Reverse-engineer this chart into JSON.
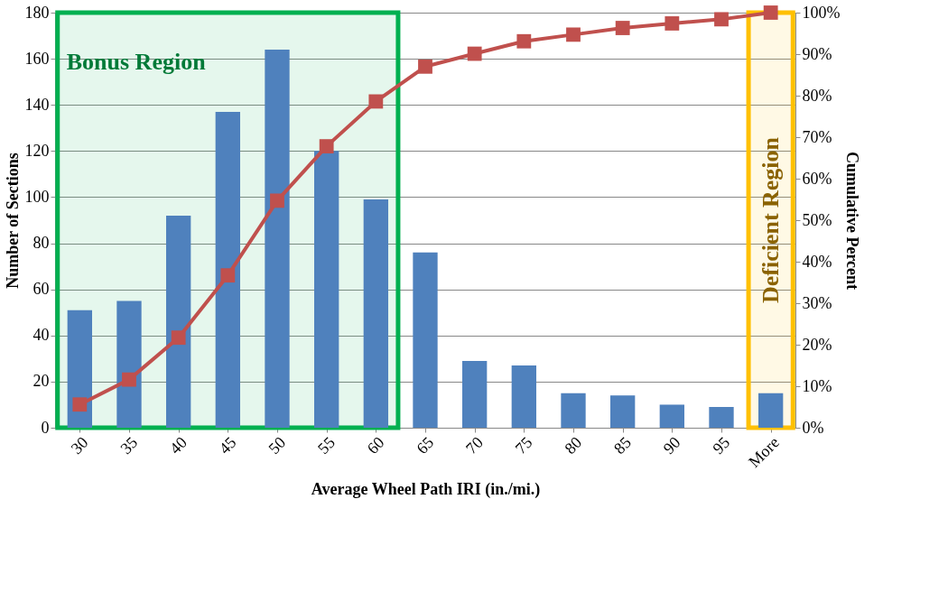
{
  "chart_data": {
    "type": "bar",
    "xlabel": "Average Wheel Path IRI (in./mi.)",
    "ylabel": "Number of Sections",
    "y2label": "Cumulative Percent",
    "categories": [
      "30",
      "35",
      "40",
      "45",
      "50",
      "55",
      "60",
      "65",
      "70",
      "75",
      "80",
      "85",
      "90",
      "95",
      "More"
    ],
    "series": [
      {
        "color": "#4f81bd",
        "values": [
          51,
          55,
          92,
          137,
          164,
          120,
          99,
          76,
          29,
          27,
          15,
          14,
          10,
          9,
          15
        ]
      },
      {
        "type": "line",
        "axis": "y2",
        "color": "#c0504d",
        "marker": "square",
        "values": [
          5.6,
          11.6,
          21.7,
          36.7,
          54.7,
          67.8,
          78.6,
          87.0,
          90.1,
          93.1,
          94.7,
          96.3,
          97.4,
          98.4,
          100
        ]
      }
    ],
    "ylim": [
      0,
      180
    ],
    "yticks": [
      0,
      20,
      40,
      60,
      80,
      100,
      120,
      140,
      160,
      180
    ],
    "y2lim": [
      0,
      100
    ],
    "y2ticks": [
      {
        "value": 0,
        "label": "0%"
      },
      {
        "value": 10,
        "label": "10%"
      },
      {
        "value": 20,
        "label": "20%"
      },
      {
        "value": 30,
        "label": "30%"
      },
      {
        "value": 40,
        "label": "40%"
      },
      {
        "value": 50,
        "label": "50%"
      },
      {
        "value": 60,
        "label": "60%"
      },
      {
        "value": 70,
        "label": "70%"
      },
      {
        "value": 80,
        "label": "80%"
      },
      {
        "value": 90,
        "label": "90%"
      },
      {
        "value": 100,
        "label": "100%"
      }
    ],
    "bands": [
      {
        "axis": "x",
        "from": "30",
        "to": "60",
        "label": "Bonus Region",
        "color": "#00b050"
      },
      {
        "axis": "x",
        "from": "More",
        "to": "More",
        "label": "Deficient Region",
        "color": "#ffc000"
      }
    ],
    "grid": "y"
  }
}
